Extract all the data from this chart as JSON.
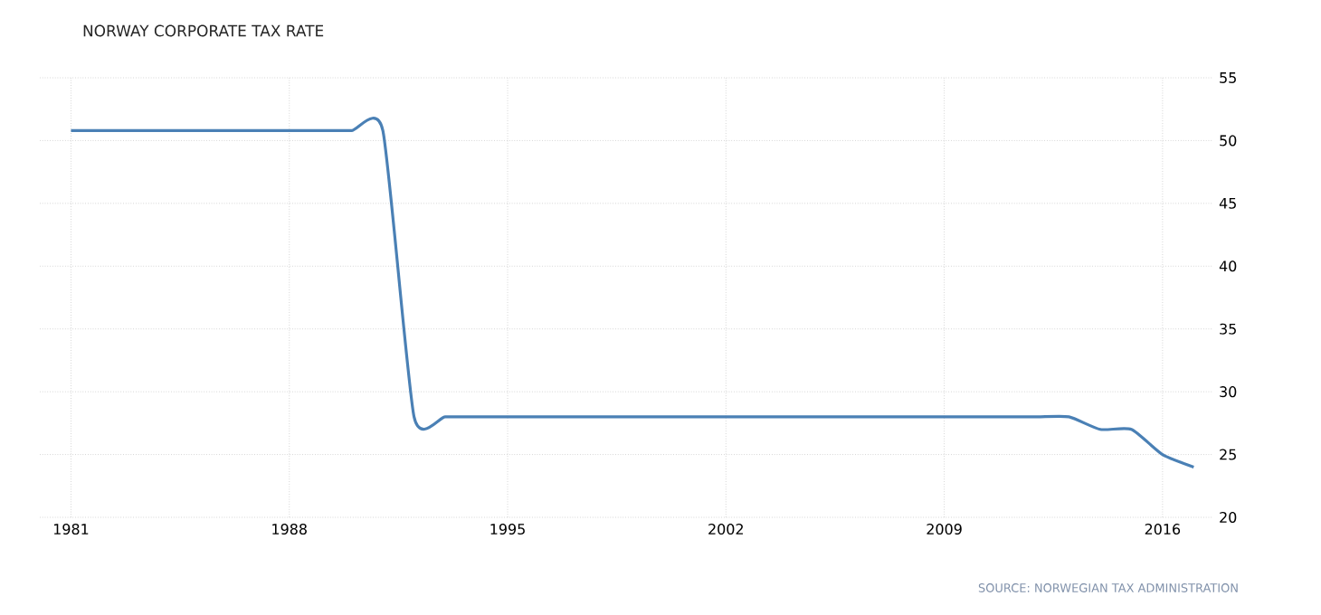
{
  "chart_data": {
    "type": "line",
    "title": "NORWAY CORPORATE TAX RATE",
    "annotations": [
      "SOURCE: NORWEGIAN TAX ADMINISTRATION"
    ],
    "x": [
      1981,
      1982,
      1983,
      1984,
      1985,
      1986,
      1987,
      1988,
      1989,
      1990,
      1991,
      1992,
      1993,
      1994,
      1995,
      1996,
      1997,
      1998,
      1999,
      2000,
      2001,
      2002,
      2003,
      2004,
      2005,
      2006,
      2007,
      2008,
      2009,
      2010,
      2011,
      2012,
      2013,
      2014,
      2015,
      2016,
      2017
    ],
    "series": [
      {
        "color": "#4a80b5",
        "values": [
          50.8,
          50.8,
          50.8,
          50.8,
          50.8,
          50.8,
          50.8,
          50.8,
          50.8,
          50.8,
          50.8,
          28,
          28,
          28,
          28,
          28,
          28,
          28,
          28,
          28,
          28,
          28,
          28,
          28,
          28,
          28,
          28,
          28,
          28,
          28,
          28,
          28,
          28,
          27,
          27,
          25,
          24
        ]
      }
    ],
    "xlim": [
      1980,
      2017.6
    ],
    "ylim": [
      20,
      55
    ],
    "xticks": [
      1981,
      1988,
      1995,
      2002,
      2009,
      2016
    ],
    "yticks": [
      20,
      25,
      30,
      35,
      40,
      45,
      50,
      55
    ],
    "grid": true,
    "marker": "none",
    "line_style": "solid"
  }
}
